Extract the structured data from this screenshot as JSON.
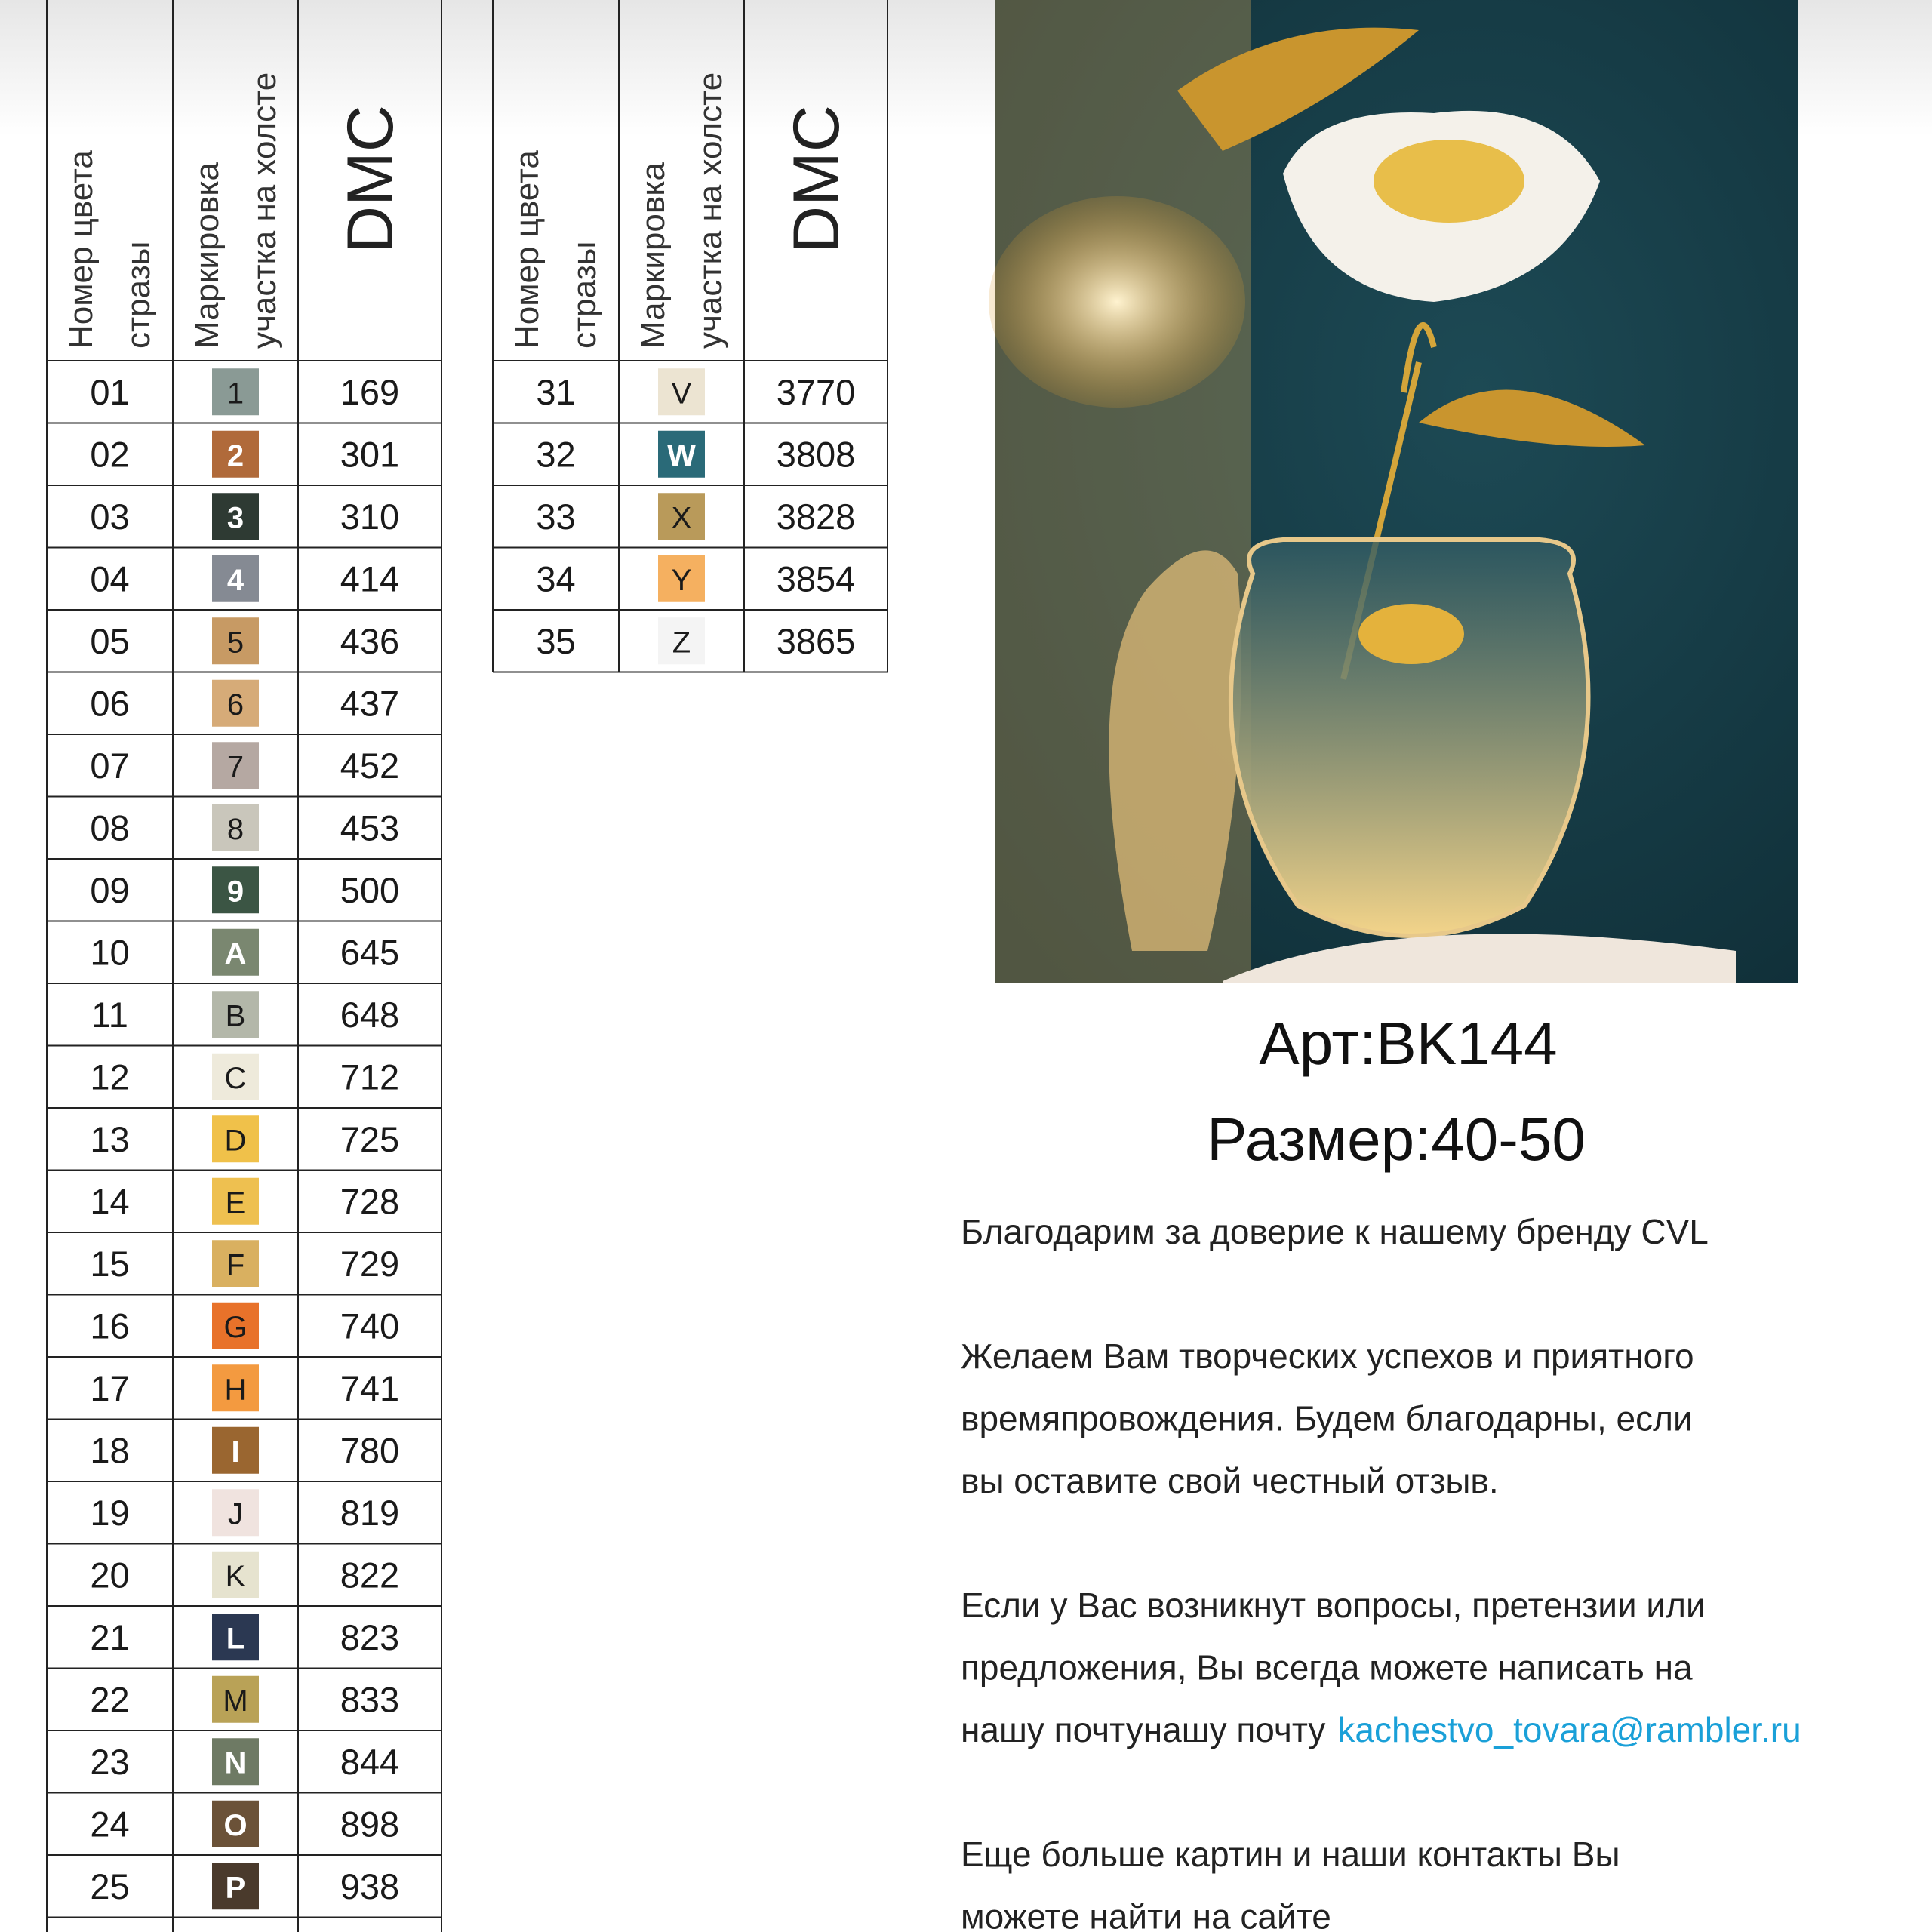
{
  "tables": [
    {
      "headers": [
        [
          "Номер цвета",
          "стразы"
        ],
        [
          "Маркировка",
          "участка на холсте"
        ],
        [
          "DMC"
        ]
      ],
      "rows": [
        [
          "01",
          "1",
          "169",
          "#8a9a95"
        ],
        [
          "02",
          "2",
          "301",
          "#b06a3a"
        ],
        [
          "03",
          "3",
          "310",
          "#2e3a33"
        ],
        [
          "04",
          "4",
          "414",
          "#858a93"
        ],
        [
          "05",
          "5",
          "436",
          "#c79a64"
        ],
        [
          "06",
          "6",
          "437",
          "#d6ab78"
        ],
        [
          "07",
          "7",
          "452",
          "#b5a8a2"
        ],
        [
          "08",
          "8",
          "453",
          "#c9c6bb"
        ],
        [
          "09",
          "9",
          "500",
          "#3b5544"
        ],
        [
          "10",
          "A",
          "645",
          "#7a8770"
        ],
        [
          "11",
          "B",
          "648",
          "#b3b7a9"
        ],
        [
          "12",
          "C",
          "712",
          "#eeeadb"
        ],
        [
          "13",
          "D",
          "725",
          "#f0c14a"
        ],
        [
          "14",
          "E",
          "728",
          "#eec050"
        ],
        [
          "15",
          "F",
          "729",
          "#d9b060"
        ],
        [
          "16",
          "G",
          "740",
          "#e8722a"
        ],
        [
          "17",
          "H",
          "741",
          "#f39a40"
        ],
        [
          "18",
          "I",
          "780",
          "#9a6630"
        ],
        [
          "19",
          "J",
          "819",
          "#f0e3df"
        ],
        [
          "20",
          "K",
          "822",
          "#e6e3cf"
        ],
        [
          "21",
          "L",
          "823",
          "#2b3852"
        ],
        [
          "22",
          "M",
          "833",
          "#b9a257"
        ],
        [
          "23",
          "N",
          "844",
          "#6e7a64"
        ],
        [
          "24",
          "O",
          "898",
          "#6b5238"
        ],
        [
          "25",
          "P",
          "938",
          "#4a3a2c"
        ]
      ]
    },
    {
      "headers": [
        [
          "Номер цвета",
          "стразы"
        ],
        [
          "Маркировка",
          "участка на холсте"
        ],
        [
          "DMC"
        ]
      ],
      "rows": [
        [
          "31",
          "V",
          "3770",
          "#ece4d2"
        ],
        [
          "32",
          "W",
          "3808",
          "#2a6a78"
        ],
        [
          "33",
          "X",
          "3828",
          "#b99a5a"
        ],
        [
          "34",
          "Y",
          "3854",
          "#f5b060"
        ],
        [
          "35",
          "Z",
          "3865",
          "#f4f4f4"
        ]
      ]
    }
  ],
  "article": "Арт:BK144",
  "size": "Размер:40-50",
  "paragraphs": [
    [
      "Благодарим за доверие к нашему бренду CVL"
    ],
    [
      "Желаем Вам творческих успехов и приятного",
      "времяпровождения. Будем благодарны, если",
      "вы оставите свой честный отзыв."
    ],
    [
      "Если у Вас возникнут вопросы, претензии или",
      "предложения, Вы всегда можете написать на",
      "нашу почту"
    ],
    [
      "Еще больше картин и наши контакты Вы",
      "можете найти на сайте"
    ]
  ],
  "email": "kachestvo_tovara@rambler.ru"
}
